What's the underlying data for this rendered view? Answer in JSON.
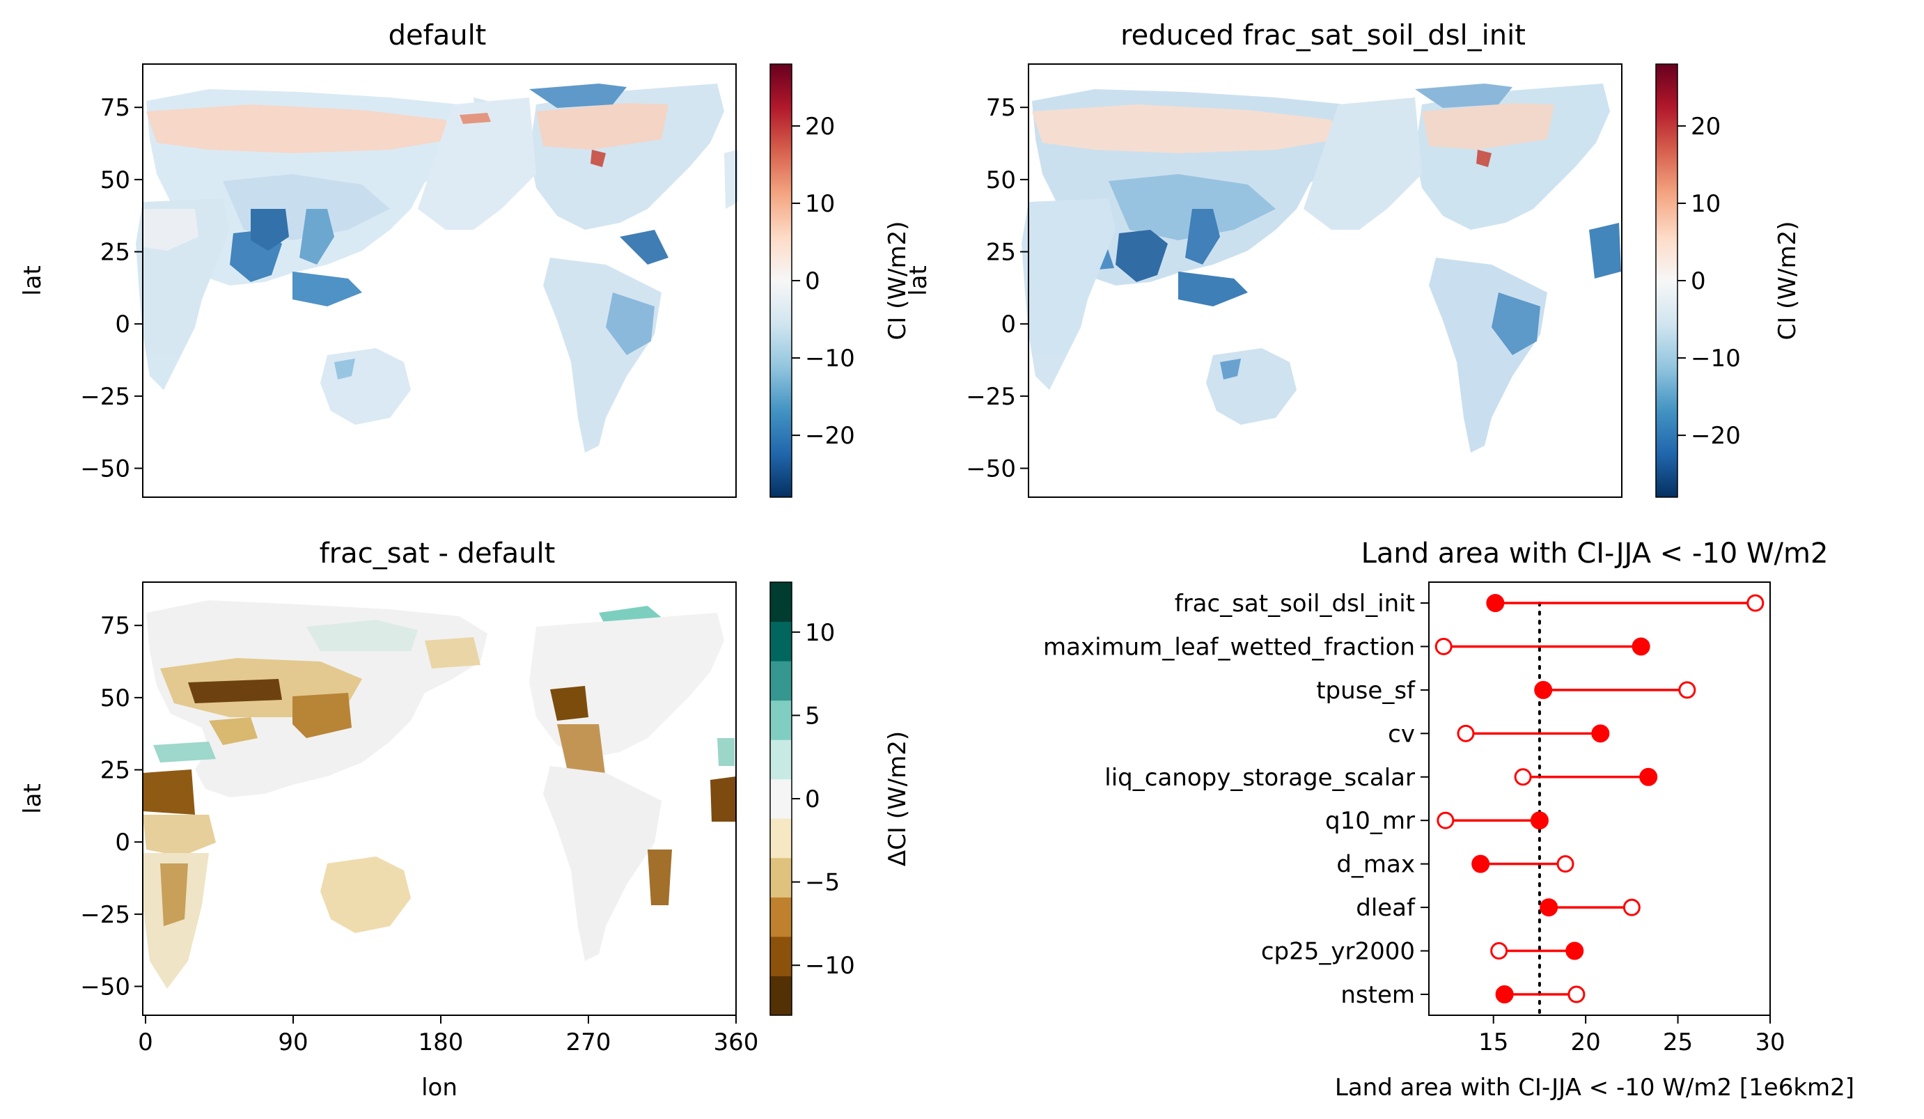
{
  "panels": {
    "top_left": {
      "title": "default",
      "ylabel": "lat"
    },
    "top_right": {
      "title": "reduced frac_sat_soil_dsl_init",
      "ylabel": "lat"
    },
    "bottom_left": {
      "title": "frac_sat - default",
      "ylabel": "lat",
      "xlabel": "lon"
    }
  },
  "colorbars": {
    "ci": {
      "label": "CI (W/m2)",
      "ticks": [
        "20",
        "10",
        "0",
        "−10",
        "−20"
      ],
      "tick_values": [
        20,
        10,
        0,
        -10,
        -20
      ],
      "range": [
        -28,
        28
      ],
      "colors": [
        "#053061",
        "#2166ac",
        "#4393c3",
        "#92c5de",
        "#d1e5f0",
        "#f7f7f7",
        "#fddbc7",
        "#f4a582",
        "#d6604d",
        "#b2182b",
        "#67001f"
      ]
    },
    "dci": {
      "label": "ΔCI (W/m2)",
      "ticks": [
        "10",
        "5",
        "0",
        "−5",
        "−10"
      ],
      "tick_values": [
        10,
        5,
        0,
        -5,
        -10
      ],
      "range": [
        -13,
        13
      ],
      "levels": [
        "#543005",
        "#8c510a",
        "#bf812d",
        "#dfc27d",
        "#f6e8c3",
        "#f5f5f5",
        "#c7eae5",
        "#80cdc1",
        "#35978f",
        "#01665e",
        "#003c30"
      ]
    }
  },
  "map_axes": {
    "lat_ticks": [
      "75",
      "50",
      "25",
      "0",
      "−25",
      "−50"
    ],
    "lat_values": [
      75,
      50,
      25,
      0,
      -25,
      -50
    ],
    "lat_range": [
      -60,
      90
    ],
    "lon_ticks": [
      "0",
      "90",
      "180",
      "270",
      "360"
    ],
    "lon_values": [
      0,
      90,
      180,
      270,
      360
    ],
    "lon_range": [
      0,
      360
    ]
  },
  "chart_data": {
    "type": "scatter",
    "title": "Land area with CI-JJA < -10 W/m2",
    "xlabel": "Land area with CI-JJA < -10 W/m2 [1e6km2]",
    "ylabel": "",
    "xlim": [
      11.5,
      30
    ],
    "xticks": [
      15,
      20,
      25,
      30
    ],
    "reference_line": 17.5,
    "categories": [
      "frac_sat_soil_dsl_init",
      "maximum_leaf_wetted_fraction",
      "tpuse_sf",
      "cv",
      "liq_canopy_storage_scalar",
      "q10_mr",
      "d_max",
      "dleaf",
      "cp25_yr2000",
      "nstem"
    ],
    "series": [
      {
        "marker": "filled",
        "values": [
          15.1,
          23.0,
          17.7,
          20.8,
          23.4,
          17.5,
          14.3,
          18.0,
          19.4,
          15.6
        ]
      },
      {
        "marker": "open",
        "values": [
          29.2,
          12.3,
          25.5,
          13.5,
          16.6,
          12.4,
          18.9,
          22.5,
          15.3,
          19.5
        ]
      }
    ],
    "color": "#ff0000"
  }
}
